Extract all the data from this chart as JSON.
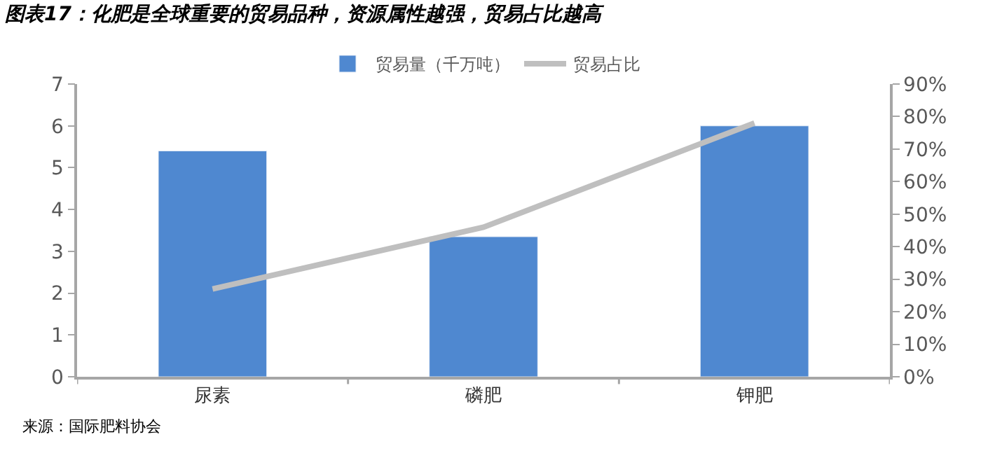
{
  "chart_data": {
    "type": "bar",
    "title": "图表17：化肥是全球重要的贸易品种，资源属性越强，贸易占比越高",
    "categories": [
      "尿素",
      "磷肥",
      "钾肥"
    ],
    "series": [
      {
        "name": "贸易量（千万吨）",
        "color": "#4f88d0",
        "values": [
          5.4,
          3.35,
          6.0
        ]
      },
      {
        "name": "贸易占比",
        "type": "line",
        "axis": "y2",
        "color": "#bfbfbf",
        "values": [
          27,
          46,
          78
        ]
      }
    ],
    "ylim": [
      0,
      7
    ],
    "yticks": [
      0,
      1,
      2,
      3,
      4,
      5,
      6,
      7
    ],
    "y2lim": [
      0,
      90
    ],
    "y2ticks": [
      {
        "value": 0,
        "label": "0%"
      },
      {
        "value": 10,
        "label": "10%"
      },
      {
        "value": 20,
        "label": "20%"
      },
      {
        "value": 30,
        "label": "30%"
      },
      {
        "value": 40,
        "label": "40%"
      },
      {
        "value": 50,
        "label": "50%"
      },
      {
        "value": 60,
        "label": "60%"
      },
      {
        "value": 70,
        "label": "70%"
      },
      {
        "value": 80,
        "label": "80%"
      },
      {
        "value": 90,
        "label": "90%"
      }
    ],
    "legend": "top",
    "marker": "none",
    "line_style": "solid",
    "annotations": [
      "来源：国际肥料协会"
    ]
  }
}
